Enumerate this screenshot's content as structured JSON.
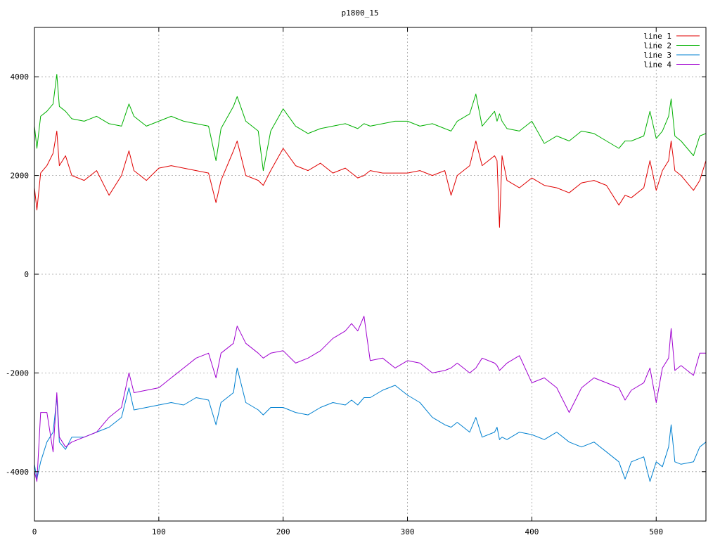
{
  "chart_data": {
    "type": "line",
    "title": "p1800_15",
    "xlabel": "",
    "ylabel": "",
    "xlim": [
      0,
      540
    ],
    "ylim": [
      -5000,
      5000
    ],
    "x_ticks": [
      0,
      100,
      200,
      300,
      400,
      500
    ],
    "y_ticks": [
      -4000,
      -2000,
      0,
      2000,
      4000
    ],
    "y_tick_labels": [
      "-4000",
      "-2000",
      "0",
      "2000",
      "4000"
    ],
    "grid": true,
    "legend_position": "top-right",
    "x": [
      0,
      2,
      5,
      10,
      15,
      18,
      20,
      25,
      30,
      40,
      50,
      60,
      70,
      76,
      80,
      90,
      100,
      110,
      120,
      130,
      140,
      146,
      150,
      160,
      163,
      170,
      180,
      184,
      190,
      200,
      210,
      220,
      230,
      240,
      250,
      255,
      260,
      265,
      270,
      280,
      290,
      300,
      310,
      320,
      330,
      335,
      340,
      350,
      355,
      360,
      370,
      372,
      374,
      376,
      380,
      390,
      400,
      410,
      420,
      430,
      440,
      450,
      460,
      470,
      475,
      480,
      490,
      495,
      500,
      505,
      510,
      512,
      515,
      520,
      530,
      535,
      540
    ],
    "series": [
      {
        "name": "line 1",
        "color": "#e00000",
        "values": [
          1750,
          1300,
          2050,
          2200,
          2450,
          2900,
          2200,
          2400,
          2000,
          1900,
          2100,
          1600,
          2000,
          2500,
          2100,
          1900,
          2150,
          2200,
          2150,
          2100,
          2050,
          1450,
          1900,
          2500,
          2700,
          2000,
          1900,
          1800,
          2100,
          2550,
          2200,
          2100,
          2250,
          2050,
          2150,
          2050,
          1950,
          2000,
          2100,
          2050,
          2050,
          2050,
          2100,
          2000,
          2100,
          1600,
          2000,
          2200,
          2700,
          2200,
          2400,
          2300,
          950,
          2400,
          1900,
          1750,
          1950,
          1800,
          1750,
          1650,
          1850,
          1900,
          1800,
          1400,
          1600,
          1550,
          1750,
          2300,
          1700,
          2100,
          2300,
          2700,
          2100,
          2000,
          1700,
          1900,
          2300
        ]
      },
      {
        "name": "line 2",
        "color": "#00b000",
        "values": [
          3000,
          2550,
          3200,
          3300,
          3450,
          4050,
          3400,
          3300,
          3150,
          3100,
          3200,
          3050,
          3000,
          3450,
          3200,
          3000,
          3100,
          3200,
          3100,
          3050,
          3000,
          2300,
          2950,
          3400,
          3600,
          3100,
          2900,
          2100,
          2900,
          3350,
          3000,
          2850,
          2950,
          3000,
          3050,
          3000,
          2950,
          3050,
          3000,
          3050,
          3100,
          3100,
          3000,
          3050,
          2950,
          2900,
          3100,
          3250,
          3650,
          3000,
          3300,
          3100,
          3250,
          3100,
          2950,
          2900,
          3100,
          2650,
          2800,
          2700,
          2900,
          2850,
          2700,
          2550,
          2700,
          2700,
          2800,
          3300,
          2750,
          2900,
          3200,
          3550,
          2800,
          2700,
          2400,
          2800,
          2850
        ]
      },
      {
        "name": "line 3",
        "color": "#0080d0",
        "values": [
          -3850,
          -4150,
          -3800,
          -3400,
          -3200,
          -2500,
          -3400,
          -3550,
          -3300,
          -3300,
          -3200,
          -3100,
          -2900,
          -2300,
          -2750,
          -2700,
          -2650,
          -2600,
          -2650,
          -2500,
          -2550,
          -3050,
          -2600,
          -2400,
          -1900,
          -2600,
          -2750,
          -2850,
          -2700,
          -2700,
          -2800,
          -2850,
          -2700,
          -2600,
          -2650,
          -2550,
          -2650,
          -2500,
          -2500,
          -2350,
          -2250,
          -2450,
          -2600,
          -2900,
          -3050,
          -3100,
          -3000,
          -3200,
          -2900,
          -3300,
          -3200,
          -3100,
          -3350,
          -3300,
          -3350,
          -3200,
          -3250,
          -3350,
          -3200,
          -3400,
          -3500,
          -3400,
          -3600,
          -3800,
          -4150,
          -3800,
          -3700,
          -4200,
          -3800,
          -3900,
          -3500,
          -3050,
          -3800,
          -3850,
          -3800,
          -3500,
          -3400
        ]
      },
      {
        "name": "line 4",
        "color": "#a000d0",
        "values": [
          -4000,
          -4200,
          -2800,
          -2800,
          -3600,
          -2400,
          -3300,
          -3500,
          -3400,
          -3300,
          -3200,
          -2900,
          -2700,
          -2000,
          -2400,
          -2350,
          -2300,
          -2100,
          -1900,
          -1700,
          -1600,
          -2100,
          -1600,
          -1400,
          -1050,
          -1400,
          -1600,
          -1700,
          -1600,
          -1550,
          -1800,
          -1700,
          -1550,
          -1300,
          -1150,
          -1000,
          -1150,
          -850,
          -1750,
          -1700,
          -1900,
          -1750,
          -1800,
          -2000,
          -1950,
          -1900,
          -1800,
          -2000,
          -1900,
          -1700,
          -1800,
          -1850,
          -1950,
          -1900,
          -1800,
          -1650,
          -2200,
          -2100,
          -2300,
          -2800,
          -2300,
          -2100,
          -2200,
          -2300,
          -2550,
          -2350,
          -2200,
          -1900,
          -2600,
          -1900,
          -1700,
          -1100,
          -1950,
          -1850,
          -2050,
          -1600,
          -1600
        ]
      }
    ]
  }
}
